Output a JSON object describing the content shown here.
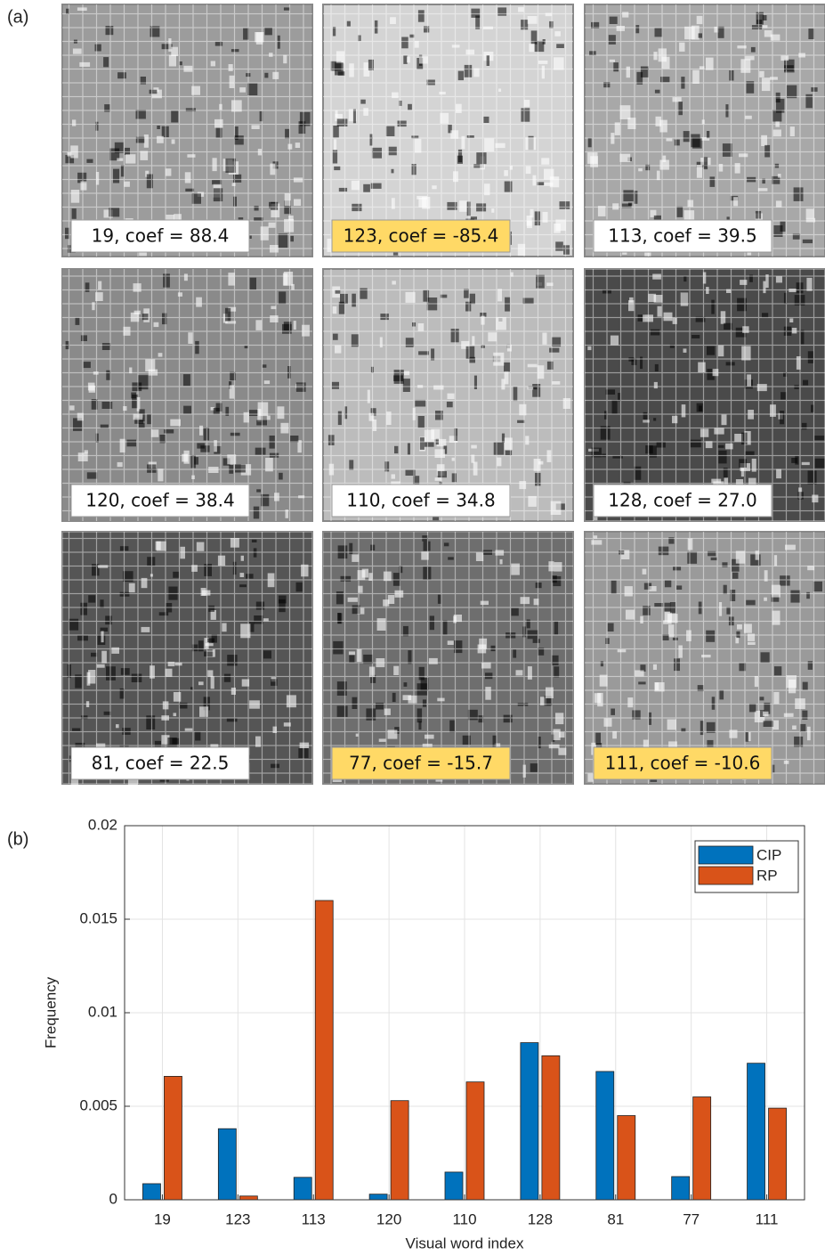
{
  "panel_a": {
    "label": "(a)",
    "tiles": [
      {
        "label": "19, coef = 88.4",
        "label_color": "#ffffff",
        "background": "#9c9c9c"
      },
      {
        "label": "123, coef = -85.4",
        "label_color": "#ffd966",
        "background": "#d4d4d4"
      },
      {
        "label": "113, coef = 39.5",
        "label_color": "#ffffff",
        "background": "#a8a8a8"
      },
      {
        "label": "120, coef = 38.4",
        "label_color": "#ffffff",
        "background": "#8a8a8a"
      },
      {
        "label": "110, coef = 34.8",
        "label_color": "#ffffff",
        "background": "#bcbcbc"
      },
      {
        "label": "128, coef = 27.0",
        "label_color": "#ffffff",
        "background": "#4a4a4a"
      },
      {
        "label": "81, coef = 22.5",
        "label_color": "#ffffff",
        "background": "#555555"
      },
      {
        "label": "77, coef = -15.7",
        "label_color": "#ffd966",
        "background": "#6e6e6e"
      },
      {
        "label": "111, coef = -10.6",
        "label_color": "#ffd966",
        "background": "#9a9a9a"
      }
    ]
  },
  "chart_data": {
    "type": "bar",
    "panel_label": "(b)",
    "x_label": "Visual word index",
    "y_label": "Frequency",
    "categories": [
      "19",
      "123",
      "113",
      "120",
      "110",
      "128",
      "81",
      "77",
      "111"
    ],
    "series": [
      {
        "name": "CIP",
        "color": "#0072bd",
        "values": [
          0.00086,
          0.0038,
          0.0012,
          0.0003,
          0.00148,
          0.0084,
          0.00686,
          0.00124,
          0.0073
        ]
      },
      {
        "name": "RP",
        "color": "#d95319",
        "values": [
          0.0066,
          0.0002,
          0.016,
          0.0053,
          0.0063,
          0.0077,
          0.0045,
          0.0055,
          0.0049
        ]
      }
    ],
    "ylim": [
      0,
      0.02
    ],
    "yticks": [
      0,
      0.005,
      0.01,
      0.015,
      0.02
    ],
    "grid": true,
    "legend": "upper right"
  }
}
